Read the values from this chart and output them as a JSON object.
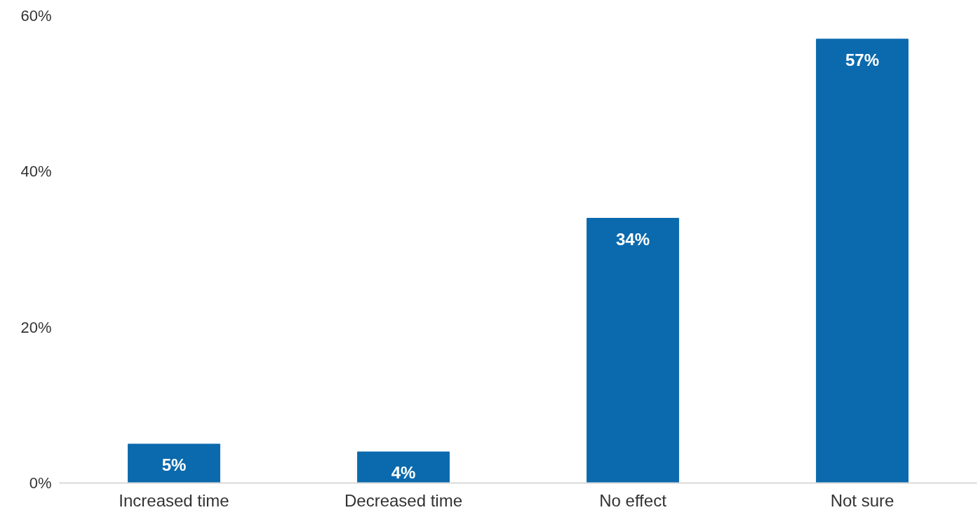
{
  "chart_data": {
    "type": "bar",
    "categories": [
      "Increased time",
      "Decreased time",
      "No effect",
      "Not sure"
    ],
    "values": [
      5,
      4,
      34,
      57
    ],
    "color": "#0b6aad",
    "value_labels": [
      "5%",
      "4%",
      "34%",
      "57%"
    ],
    "ylim": [
      0,
      60
    ],
    "yticks": [
      {
        "value": 0,
        "label": "0%"
      },
      {
        "value": 20,
        "label": "20%"
      },
      {
        "value": 40,
        "label": "40%"
      },
      {
        "value": 60,
        "label": "60%"
      }
    ],
    "grid": false
  }
}
